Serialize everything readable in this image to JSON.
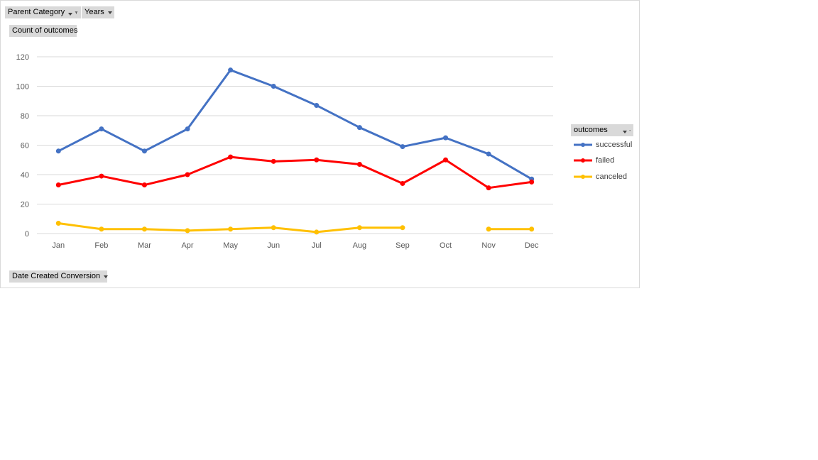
{
  "filters": {
    "parent_category": "Parent Category",
    "years": "Years",
    "values_field": "Count of outcomes",
    "axis_field": "Date Created Conversion",
    "legend_field": "outcomes"
  },
  "colors": {
    "successful": "#4472c4",
    "failed": "#ff0000",
    "canceled": "#ffc000",
    "gridline": "#d9d9d9",
    "field_button": "#d9d9d9"
  },
  "icons": [
    "filter-icon",
    "dropdown-arrow-icon"
  ],
  "chart_data": {
    "type": "line",
    "categories": [
      "Jan",
      "Feb",
      "Mar",
      "Apr",
      "May",
      "Jun",
      "Jul",
      "Aug",
      "Sep",
      "Oct",
      "Nov",
      "Dec"
    ],
    "yticks": [
      "0",
      "20",
      "40",
      "60",
      "80",
      "100",
      "120"
    ],
    "ylim": [
      0,
      120
    ],
    "grid": true,
    "legend_position": "right",
    "series": [
      {
        "name": "successful",
        "color": "#4472c4",
        "values": [
          56,
          71,
          56,
          71,
          111,
          100,
          87,
          72,
          59,
          65,
          54,
          37
        ]
      },
      {
        "name": "failed",
        "color": "#ff0000",
        "values": [
          33,
          39,
          33,
          40,
          52,
          49,
          50,
          47,
          34,
          50,
          31,
          35
        ]
      },
      {
        "name": "canceled",
        "color": "#ffc000",
        "values": [
          7,
          3,
          3,
          2,
          3,
          4,
          1,
          4,
          4,
          null,
          3,
          3
        ]
      }
    ]
  }
}
